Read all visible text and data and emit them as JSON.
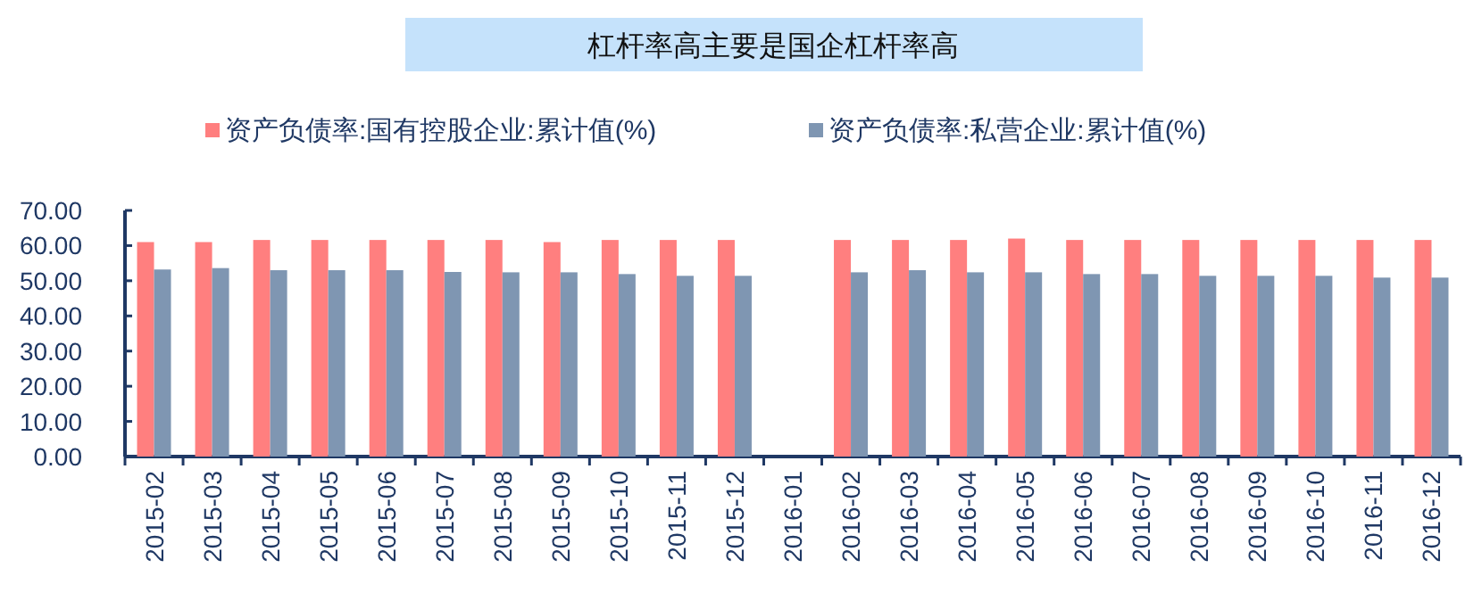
{
  "chart_data": {
    "type": "bar",
    "title": "杠杆率高主要是国企杠杆率高",
    "categories": [
      "2015-02",
      "2015-03",
      "2015-04",
      "2015-05",
      "2015-06",
      "2015-07",
      "2015-08",
      "2015-09",
      "2015-10",
      "2015-11",
      "2015-12",
      "2016-01",
      "2016-02",
      "2016-03",
      "2016-04",
      "2016-05",
      "2016-06",
      "2016-07",
      "2016-08",
      "2016-09",
      "2016-10",
      "2016-11",
      "2016-12"
    ],
    "series": [
      {
        "name": "资产负债率:国有控股企业:累计值(%)",
        "color": "#ff7f7f",
        "values": [
          61.0,
          61.0,
          61.6,
          61.6,
          61.6,
          61.6,
          61.6,
          61.0,
          61.6,
          61.6,
          61.6,
          null,
          61.6,
          61.6,
          61.6,
          62.0,
          61.6,
          61.6,
          61.6,
          61.6,
          61.6,
          61.6,
          61.6
        ]
      },
      {
        "name": "资产负债率:私营企业:累计值(%)",
        "color": "#7f96b2",
        "values": [
          53.2,
          53.6,
          53.0,
          53.0,
          53.0,
          52.5,
          52.4,
          52.4,
          51.9,
          51.4,
          51.4,
          null,
          52.4,
          53.0,
          52.4,
          52.4,
          51.9,
          51.9,
          51.4,
          51.4,
          51.4,
          50.9,
          50.9
        ]
      }
    ],
    "ylim": [
      0,
      70
    ],
    "yticks": [
      {
        "value": 0,
        "label": "0.00"
      },
      {
        "value": 10,
        "label": "10.00"
      },
      {
        "value": 20,
        "label": "20.00"
      },
      {
        "value": 30,
        "label": "30.00"
      },
      {
        "value": 40,
        "label": "40.00"
      },
      {
        "value": 50,
        "label": "50.00"
      },
      {
        "value": 60,
        "label": "60.00"
      },
      {
        "value": 70,
        "label": "70.00"
      }
    ],
    "legend": "top",
    "grid": false
  }
}
